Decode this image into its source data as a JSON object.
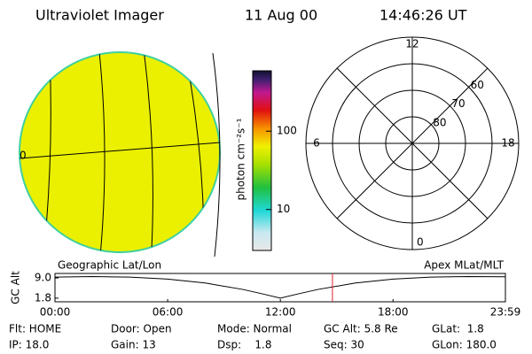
{
  "header": {
    "title": "Ultraviolet Imager",
    "date": "11 Aug 00",
    "time": "14:46:26 UT"
  },
  "globe": {
    "label": "0"
  },
  "colorbar": {
    "label": "photon cm⁻²s⁻¹",
    "log": true,
    "clim": [
      3,
      590
    ],
    "ticks": [
      100,
      10
    ]
  },
  "polar": {
    "rlim": [
      90,
      50
    ],
    "lat_ticks": [
      80,
      70,
      60
    ],
    "mlt_ticks": [
      12,
      18,
      6,
      0
    ]
  },
  "timeline": {
    "left_label": "Geographic Lat/Lon",
    "right_label": "Apex MLat/MLT",
    "y_label": "GC Alt",
    "xlim": [
      0,
      23.983
    ],
    "xticks": [
      {
        "value": 0,
        "label": "00:00"
      },
      {
        "value": 6,
        "label": "06:00"
      },
      {
        "value": 12,
        "label": "12:00"
      },
      {
        "value": 18,
        "label": "18:00"
      },
      {
        "value": 23.983,
        "label": "23:59"
      }
    ],
    "ylim": [
      0.5,
      10.6
    ],
    "yticks": [
      {
        "value": 9.0,
        "label": "9.0"
      },
      1.8
    ],
    "x": [
      0,
      2,
      4,
      6,
      8,
      10,
      11,
      12,
      13,
      14,
      16,
      18,
      20,
      22,
      23.983
    ],
    "values": [
      9.3,
      9.5,
      9.3,
      8.6,
      7.2,
      4.9,
      3.4,
      1.8,
      3.4,
      4.9,
      7.2,
      8.6,
      9.3,
      9.5,
      9.4
    ],
    "marker": 14.774,
    "marker_color": "#e0202a"
  },
  "info": [
    [
      "Flt: HOME",
      "Door: Open",
      "Mode: Normal",
      "GC Alt: 5.8 Re",
      "GLat:  1.8"
    ],
    [
      "IP: 18.0",
      "Gain: 13",
      "Dsp:    1.8",
      "Seq: 30",
      "GLon: 180.0"
    ]
  ]
}
